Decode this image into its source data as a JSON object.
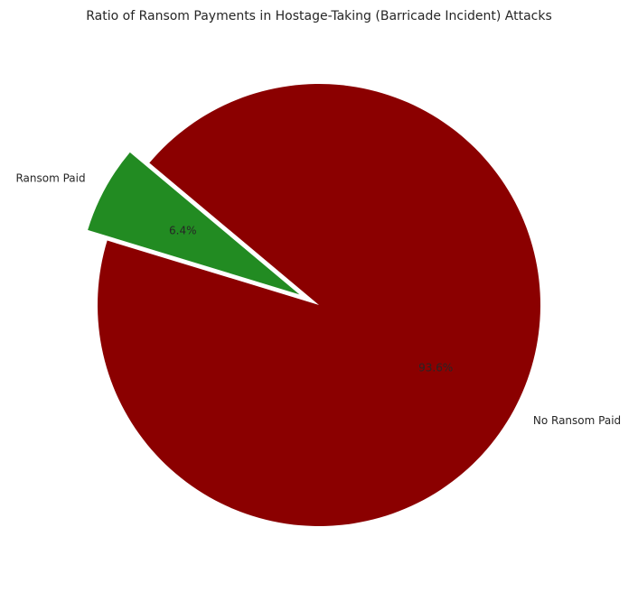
{
  "chart_data": {
    "type": "pie",
    "title": "Ratio of Ransom Payments in Hostage-Taking (Barricade Incident) Attacks",
    "slices": [
      {
        "label": "Ransom Paid",
        "value": 6.4,
        "pct_label": "6.4%",
        "color": "#228b22",
        "exploded": true
      },
      {
        "label": "No Ransom Paid",
        "value": 93.6,
        "pct_label": "93.6%",
        "color": "#8b0000",
        "exploded": false
      }
    ],
    "start_angle_deg": 140,
    "counterclockwise": true,
    "legend": "none"
  }
}
